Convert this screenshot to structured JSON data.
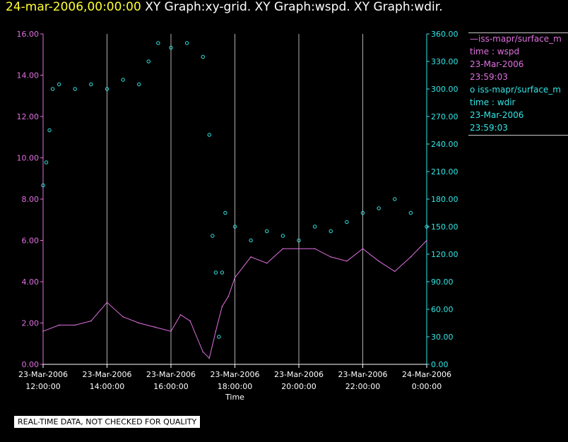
{
  "header": {
    "date": "24-mar-2006,00:00:00",
    "graphs": "XY Graph:xy-grid.  XY Graph:wspd.  XY Graph:wdir."
  },
  "legend": {
    "series1": {
      "line1": "—iss-mapr/surface_m",
      "line2": "time : wspd",
      "line3": "23-Mar-2006",
      "line4": "23:59:03"
    },
    "series2": {
      "line1": "o iss-mapr/surface_m",
      "line2": "time : wdir",
      "line3": "23-Mar-2006",
      "line4": "23:59:03"
    }
  },
  "footer": {
    "qc_note": "REAL-TIME DATA, NOT CHECKED FOR QUALITY"
  },
  "colors": {
    "wspd": "#e070e0",
    "wdir": "#33e6e6",
    "grid": "#b0b0b0",
    "axis": "#ffffff"
  },
  "chart_data": {
    "type": "line",
    "xlabel": "Time",
    "x_ticks": [
      {
        "hours": 0,
        "date": "23-Mar-2006",
        "time": "12:00:00"
      },
      {
        "hours": 2,
        "date": "23-Mar-2006",
        "time": "14:00:00"
      },
      {
        "hours": 4,
        "date": "23-Mar-2006",
        "time": "16:00:00"
      },
      {
        "hours": 6,
        "date": "23-Mar-2006",
        "time": "18:00:00"
      },
      {
        "hours": 8,
        "date": "23-Mar-2006",
        "time": "20:00:00"
      },
      {
        "hours": 10,
        "date": "23-Mar-2006",
        "time": "22:00:00"
      },
      {
        "hours": 12,
        "date": "24-Mar-2006",
        "time": "0:00:00"
      }
    ],
    "xlim": [
      0,
      12
    ],
    "left_axis": {
      "ylim": [
        0,
        16
      ],
      "tick_labels": [
        "0.00",
        "2.00",
        "4.00",
        "6.00",
        "8.00",
        "10.00",
        "12.00",
        "14.00",
        "16.00"
      ]
    },
    "right_axis": {
      "ylim": [
        0,
        360
      ],
      "tick_labels": [
        "0.00",
        "30.00",
        "60.00",
        "90.00",
        "120.00",
        "150.00",
        "180.00",
        "210.00",
        "240.00",
        "270.00",
        "300.00",
        "330.00",
        "360.00"
      ]
    },
    "series": [
      {
        "name": "wspd",
        "axis": "left",
        "style": "line",
        "x": [
          0,
          0.5,
          1,
          1.5,
          2,
          2.5,
          3,
          3.5,
          4,
          4.3,
          4.6,
          5,
          5.2,
          5.4,
          5.6,
          5.8,
          6,
          6.5,
          7,
          7.5,
          8,
          8.5,
          9,
          9.5,
          10,
          10.5,
          11,
          11.5,
          12
        ],
        "values": [
          1.6,
          1.9,
          1.9,
          2.1,
          3.0,
          2.3,
          2.0,
          1.8,
          1.6,
          2.4,
          2.1,
          0.6,
          0.3,
          1.6,
          2.8,
          3.3,
          4.2,
          5.2,
          4.9,
          5.6,
          5.6,
          5.6,
          5.2,
          5.0,
          5.6,
          5.0,
          4.5,
          5.2,
          6.0
        ]
      },
      {
        "name": "wdir",
        "axis": "right",
        "style": "circles",
        "x": [
          0,
          0.1,
          0.2,
          0.3,
          0.5,
          1,
          1.5,
          2,
          2.5,
          3,
          3.3,
          3.6,
          4,
          4.5,
          5,
          5.2,
          5.3,
          5.4,
          5.5,
          5.6,
          5.7,
          6,
          6.5,
          7,
          7.5,
          8,
          8.5,
          9,
          9.5,
          10,
          10.5,
          11,
          11.5,
          12
        ],
        "values": [
          195,
          220,
          255,
          300,
          305,
          300,
          305,
          300,
          310,
          305,
          330,
          350,
          345,
          350,
          335,
          250,
          140,
          100,
          30,
          100,
          165,
          150,
          135,
          145,
          140,
          135,
          150,
          145,
          155,
          165,
          170,
          180,
          165,
          150
        ]
      }
    ]
  }
}
